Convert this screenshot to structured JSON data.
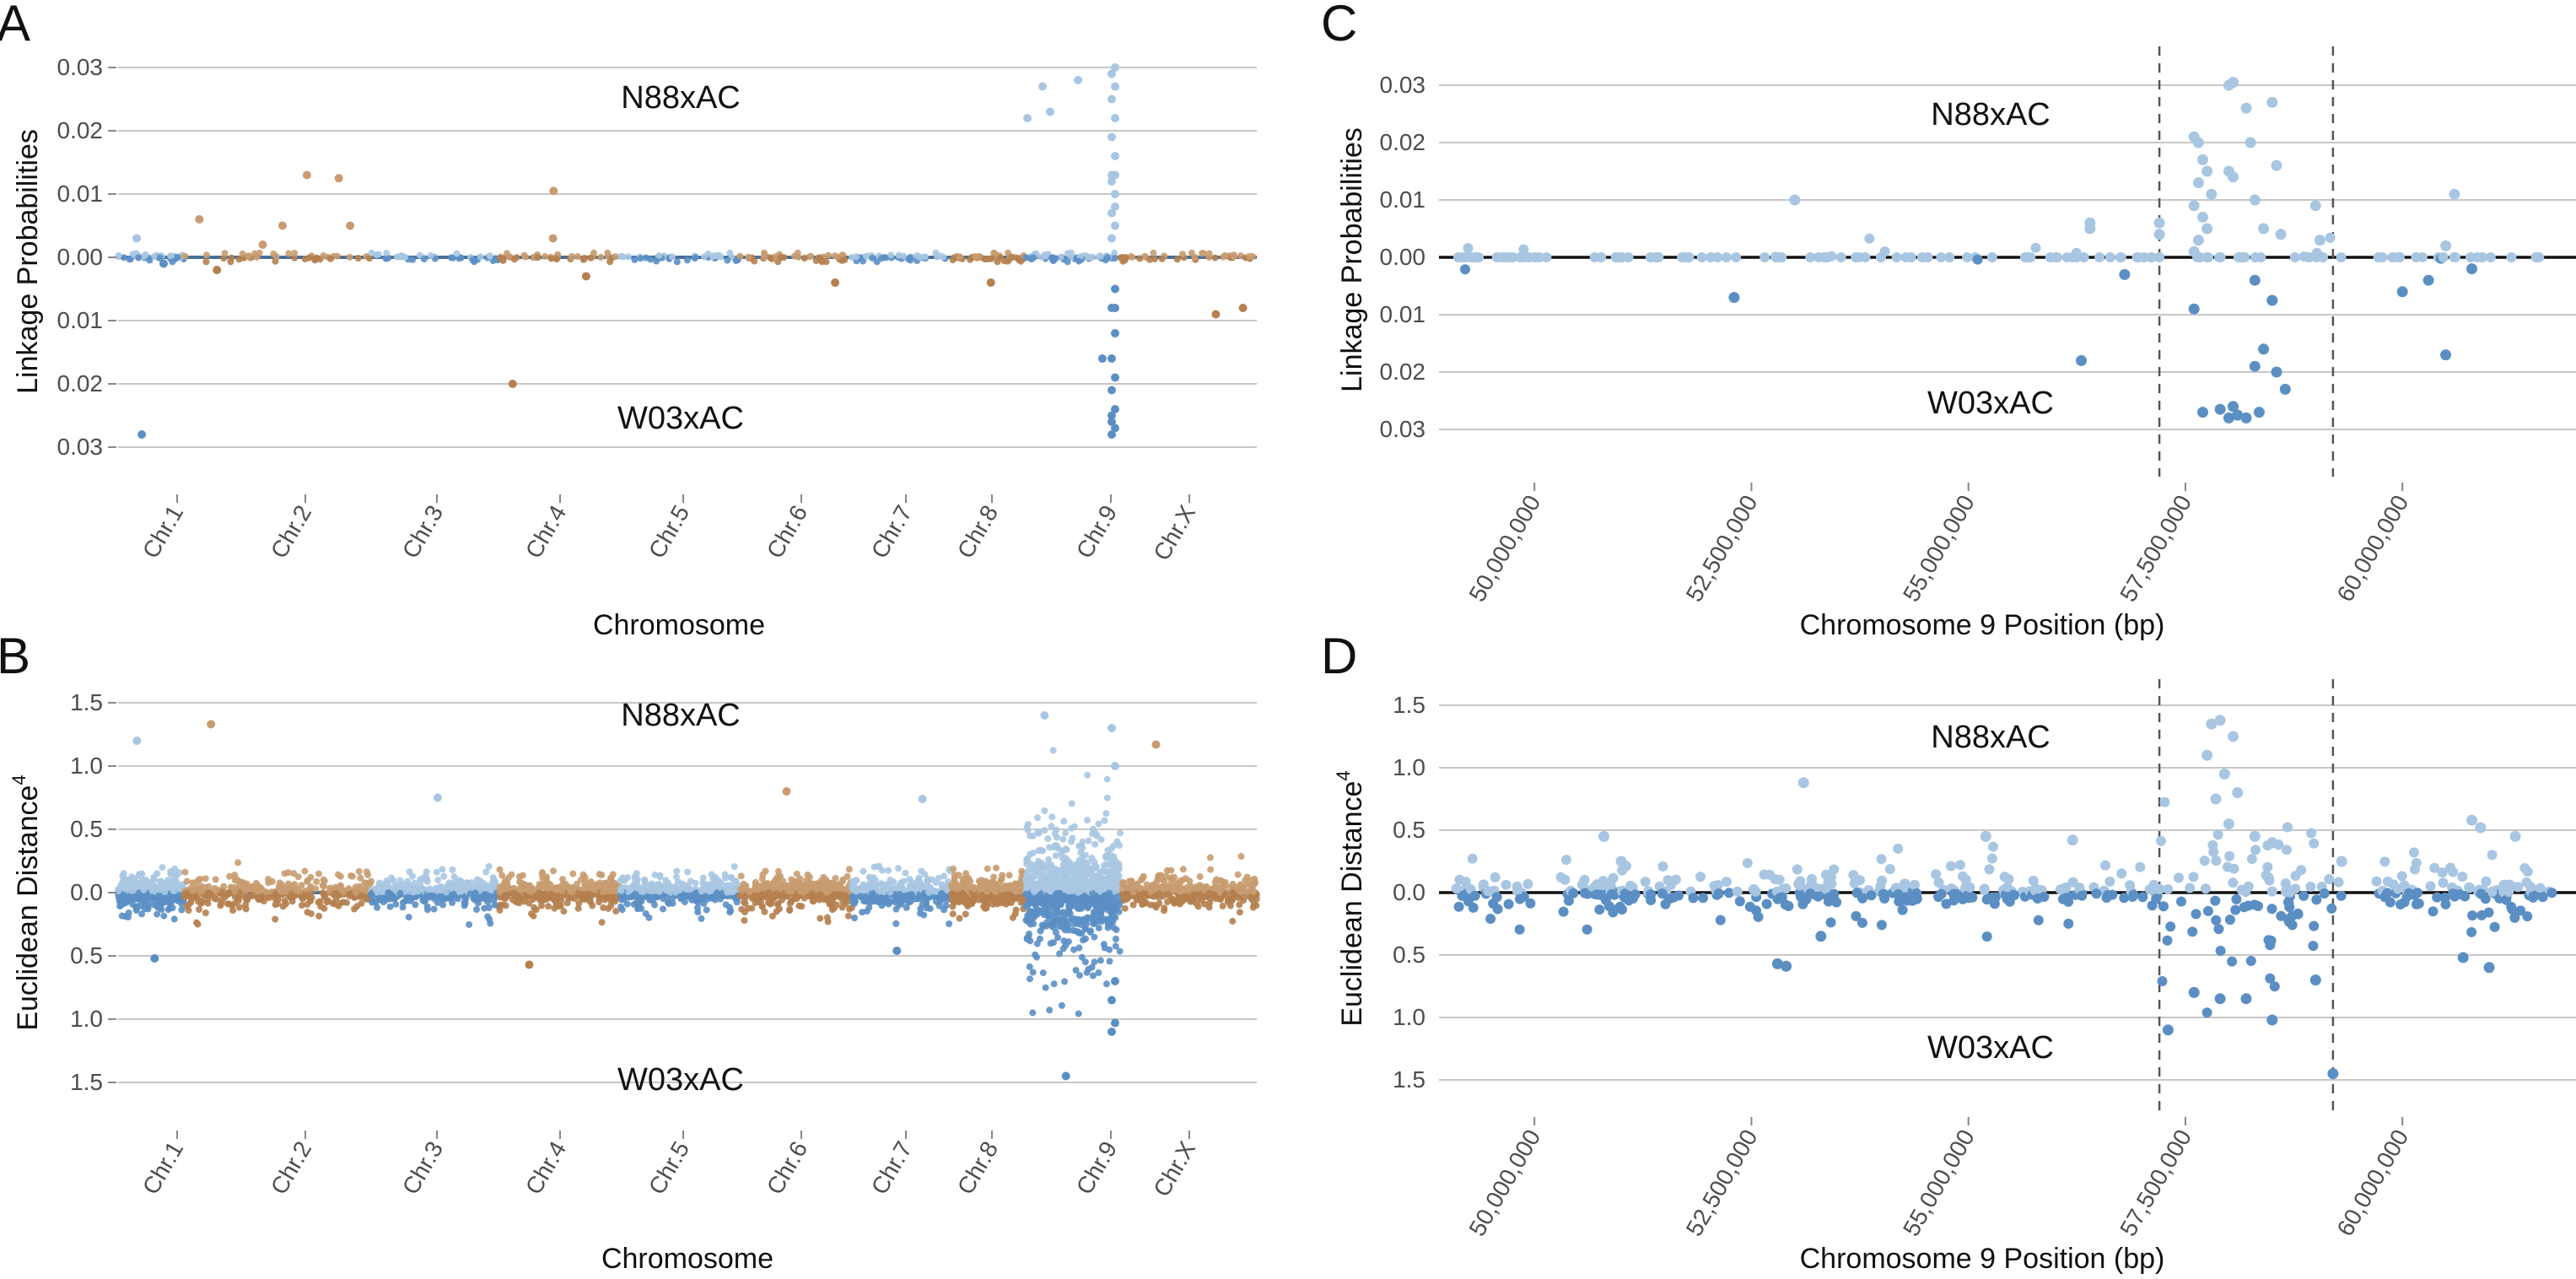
{
  "chart_data": [
    {
      "panel": "A",
      "type": "scatter",
      "subtype": "mirrored manhattan",
      "ylabel": "Linkage Probabilities",
      "xlabel": "Chromosome",
      "top_label": "N88xAC",
      "bottom_label": "W03xAC",
      "ylim_top": [
        0,
        0.035
      ],
      "ylim_bottom": [
        0,
        0.035
      ],
      "y_ticks_top": [
        "0.00",
        "0.01",
        "0.02",
        "0.03"
      ],
      "y_ticks_bottom": [
        "0.01",
        "0.02",
        "0.03"
      ],
      "y_tick_values_top": [
        0,
        0.01,
        0.02,
        0.03
      ],
      "y_tick_values_bottom": [
        0.01,
        0.02,
        0.03
      ],
      "chromosomes": [
        "Chr.1",
        "Chr.2",
        "Chr.3",
        "Chr.4",
        "Chr.5",
        "Chr.6",
        "Chr.7",
        "Chr.8",
        "Chr.9",
        "Chr.X"
      ],
      "colors": {
        "blue_dark": "#5b8fc4",
        "blue_light": "#a8c6e2",
        "tan": "#c89c70",
        "tan_dark": "#b5804f"
      },
      "series": [
        {
          "name": "N88xAC",
          "notable_points": [
            {
              "chrom": "Chr.1",
              "value": 0.003
            },
            {
              "chrom": "Chr.2",
              "value": 0.006
            },
            {
              "chrom": "Chr.2",
              "value": 0.005
            },
            {
              "chrom": "Chr.2",
              "value": 0.0125
            },
            {
              "chrom": "Chr.2",
              "value": 0.013
            },
            {
              "chrom": "Chr.2",
              "value": 0.005
            },
            {
              "chrom": "Chr.2",
              "value": 0.002
            },
            {
              "chrom": "Chr.4",
              "value": 0.0105
            },
            {
              "chrom": "Chr.4",
              "value": 0.003
            },
            {
              "chrom": "Chr.9",
              "value": 0.028
            },
            {
              "chrom": "Chr.9",
              "value": 0.027
            },
            {
              "chrom": "Chr.9",
              "value": 0.023
            },
            {
              "chrom": "Chr.9",
              "value": 0.022
            },
            {
              "chrom": "Chr.9",
              "value": 0.013
            },
            {
              "chrom": "Chr.9",
              "value": 0.012
            },
            {
              "chrom": "Chr.9",
              "value": 0.008
            },
            {
              "chrom": "Chr.9",
              "value": 0.003
            },
            {
              "chrom": "Chr.9",
              "value": 0.03
            },
            {
              "chrom": "Chr.9",
              "value": 0.029
            },
            {
              "chrom": "Chr.9",
              "value": 0.027
            },
            {
              "chrom": "Chr.9",
              "value": 0.025
            },
            {
              "chrom": "Chr.9",
              "value": 0.022
            },
            {
              "chrom": "Chr.9",
              "value": 0.019
            },
            {
              "chrom": "Chr.9",
              "value": 0.016
            },
            {
              "chrom": "Chr.9",
              "value": 0.013
            },
            {
              "chrom": "Chr.9",
              "value": 0.01
            },
            {
              "chrom": "Chr.9",
              "value": 0.007
            },
            {
              "chrom": "Chr.9",
              "value": 0.005
            }
          ]
        },
        {
          "name": "W03xAC",
          "notable_points": [
            {
              "chrom": "Chr.1",
              "value": 0.028
            },
            {
              "chrom": "Chr.1",
              "value": 0.001
            },
            {
              "chrom": "Chr.2",
              "value": 0.002
            },
            {
              "chrom": "Chr.4",
              "value": 0.02
            },
            {
              "chrom": "Chr.4",
              "value": 0.003
            },
            {
              "chrom": "Chr.6",
              "value": 0.004
            },
            {
              "chrom": "Chr.8",
              "value": 0.004
            },
            {
              "chrom": "Chr.9",
              "value": 0.016
            },
            {
              "chrom": "Chr.9",
              "value": 0.025
            },
            {
              "chrom": "Chr.9",
              "value": 0.008
            },
            {
              "chrom": "Chr.9",
              "value": 0.028
            },
            {
              "chrom": "Chr.9",
              "value": 0.027
            },
            {
              "chrom": "Chr.9",
              "value": 0.026
            },
            {
              "chrom": "Chr.9",
              "value": 0.024
            },
            {
              "chrom": "Chr.9",
              "value": 0.021
            },
            {
              "chrom": "Chr.9",
              "value": 0.019
            },
            {
              "chrom": "Chr.9",
              "value": 0.016
            },
            {
              "chrom": "Chr.9",
              "value": 0.012
            },
            {
              "chrom": "Chr.9",
              "value": 0.008
            },
            {
              "chrom": "Chr.9",
              "value": 0.005
            },
            {
              "chrom": "Chr.X",
              "value": 0.008
            },
            {
              "chrom": "Chr.X",
              "value": 0.009
            }
          ]
        }
      ]
    },
    {
      "panel": "B",
      "type": "scatter",
      "subtype": "mirrored manhattan",
      "ylabel": "Euclidean Distance",
      "ylabel_superscript": "4",
      "xlabel": "Chromosome",
      "top_label": "N88xAC",
      "bottom_label": "W03xAC",
      "ylim_top": [
        0,
        1.6
      ],
      "ylim_bottom": [
        0,
        1.6
      ],
      "y_ticks_top": [
        "0.0",
        "0.5",
        "1.0",
        "1.5"
      ],
      "y_ticks_bottom": [
        "0.5",
        "1.0",
        "1.5"
      ],
      "y_tick_values_top": [
        0,
        0.5,
        1.0,
        1.5
      ],
      "y_tick_values_bottom": [
        0.5,
        1.0,
        1.5
      ],
      "chromosomes": [
        "Chr.1",
        "Chr.2",
        "Chr.3",
        "Chr.4",
        "Chr.5",
        "Chr.6",
        "Chr.7",
        "Chr.8",
        "Chr.9",
        "Chr.X"
      ],
      "series": [
        {
          "name": "N88xAC",
          "notable_points": [
            {
              "chrom": "Chr.1",
              "value": 1.2
            },
            {
              "chrom": "Chr.2",
              "value": 1.33
            },
            {
              "chrom": "Chr.3",
              "value": 0.75
            },
            {
              "chrom": "Chr.6",
              "value": 0.8
            },
            {
              "chrom": "Chr.7",
              "value": 0.74
            },
            {
              "chrom": "Chr.9",
              "value": 1.4
            },
            {
              "chrom": "Chr.9",
              "value": 1.3
            },
            {
              "chrom": "Chr.9",
              "value": 1.0
            },
            {
              "chrom": "Chr.X",
              "value": 1.17
            }
          ]
        },
        {
          "name": "W03xAC",
          "notable_points": [
            {
              "chrom": "Chr.1",
              "value": 0.52
            },
            {
              "chrom": "Chr.4",
              "value": 0.57
            },
            {
              "chrom": "Chr.7",
              "value": 0.46
            },
            {
              "chrom": "Chr.9",
              "value": 1.45
            },
            {
              "chrom": "Chr.9",
              "value": 1.1
            },
            {
              "chrom": "Chr.9",
              "value": 1.03
            },
            {
              "chrom": "Chr.9",
              "value": 0.85
            },
            {
              "chrom": "Chr.9",
              "value": 0.7
            }
          ]
        }
      ]
    },
    {
      "panel": "C",
      "type": "scatter",
      "subtype": "mirrored regional",
      "ylabel": "Linkage Probabilities",
      "xlabel": "Chromosome 9 Position (bp)",
      "top_label": "N88xAC",
      "bottom_label": "W03xAC",
      "xlim": [
        48900000,
        62000000
      ],
      "x_ticks": [
        "50,000,000",
        "52,500,000",
        "55,000,000",
        "57,500,000",
        "60,000,000"
      ],
      "x_tick_values": [
        50000000,
        52500000,
        55000000,
        57500000,
        60000000
      ],
      "vlines": [
        57200000,
        59200000
      ],
      "ylim_top": [
        0,
        0.033
      ],
      "ylim_bottom": [
        0,
        0.033
      ],
      "y_ticks_top": [
        "0.00",
        "0.01",
        "0.02",
        "0.03"
      ],
      "y_ticks_bottom": [
        "0.01",
        "0.02",
        "0.03"
      ],
      "y_tick_values_top": [
        0,
        0.01,
        0.02,
        0.03
      ],
      "y_tick_values_bottom": [
        0.01,
        0.02,
        0.03
      ],
      "series": [
        {
          "name": "N88xAC",
          "points": [
            [
              53000000,
              0.01
            ],
            [
              56400000,
              0.006
            ],
            [
              56400000,
              0.005
            ],
            [
              57200000,
              0.006
            ],
            [
              57200000,
              0.004
            ],
            [
              57600000,
              0.021
            ],
            [
              57650000,
              0.02
            ],
            [
              57700000,
              0.017
            ],
            [
              57750000,
              0.015
            ],
            [
              57650000,
              0.013
            ],
            [
              57800000,
              0.011
            ],
            [
              57600000,
              0.009
            ],
            [
              57700000,
              0.007
            ],
            [
              57750000,
              0.005
            ],
            [
              57650000,
              0.003
            ],
            [
              57600000,
              0.001
            ],
            [
              58000000,
              0.03
            ],
            [
              58050000,
              0.0305
            ],
            [
              58000000,
              0.015
            ],
            [
              58050000,
              0.014
            ],
            [
              58250000,
              0.02
            ],
            [
              58200000,
              0.026
            ],
            [
              58500000,
              0.027
            ],
            [
              58550000,
              0.016
            ],
            [
              58300000,
              0.01
            ],
            [
              58400000,
              0.005
            ],
            [
              58600000,
              0.004
            ],
            [
              59000000,
              0.009
            ],
            [
              59050000,
              0.003
            ],
            [
              60600000,
              0.011
            ],
            [
              60500000,
              0.002
            ]
          ]
        },
        {
          "name": "W03xAC",
          "points": [
            [
              52300000,
              0.007
            ],
            [
              56300000,
              0.018
            ],
            [
              56800000,
              0.003
            ],
            [
              57600000,
              0.009
            ],
            [
              57700000,
              0.027
            ],
            [
              57900000,
              0.0265
            ],
            [
              58000000,
              0.028
            ],
            [
              58100000,
              0.0275
            ],
            [
              58200000,
              0.028
            ],
            [
              58350000,
              0.027
            ],
            [
              58050000,
              0.026
            ],
            [
              58300000,
              0.019
            ],
            [
              58550000,
              0.02
            ],
            [
              58650000,
              0.023
            ],
            [
              58400000,
              0.016
            ],
            [
              58500000,
              0.0075
            ],
            [
              58300000,
              0.004
            ],
            [
              60000000,
              0.006
            ],
            [
              60300000,
              0.004
            ],
            [
              60500000,
              0.017
            ],
            [
              60800000,
              0.002
            ]
          ]
        }
      ]
    },
    {
      "panel": "D",
      "type": "scatter",
      "subtype": "mirrored regional",
      "ylabel": "Euclidean Distance",
      "ylabel_superscript": "4",
      "xlabel": "Chromosome 9 Position (bp)",
      "top_label": "N88xAC",
      "bottom_label": "W03xAC",
      "xlim": [
        48900000,
        62000000
      ],
      "x_ticks": [
        "50,000,000",
        "52,500,000",
        "55,000,000",
        "57,500,000",
        "60,000,000"
      ],
      "x_tick_values": [
        50000000,
        52500000,
        55000000,
        57500000,
        60000000
      ],
      "vlines": [
        57200000,
        59200000
      ],
      "ylim_top": [
        0,
        1.65
      ],
      "ylim_bottom": [
        0,
        1.65
      ],
      "y_ticks_top": [
        "0.0",
        "0.5",
        "1.0",
        "1.5"
      ],
      "y_ticks_bottom": [
        "0.5",
        "1.0",
        "1.5"
      ],
      "y_tick_values_top": [
        0,
        0.5,
        1.0,
        1.5
      ],
      "y_tick_values_bottom": [
        0.5,
        1.0,
        1.5
      ],
      "series": [
        {
          "name": "N88xAC",
          "points": [
            [
              50800000,
              0.45
            ],
            [
              51000000,
              0.25
            ],
            [
              53100000,
              0.88
            ],
            [
              55200000,
              0.45
            ],
            [
              56200000,
              0.42
            ],
            [
              57800000,
              1.35
            ],
            [
              57900000,
              1.38
            ],
            [
              58050000,
              1.25
            ],
            [
              57750000,
              1.1
            ],
            [
              57950000,
              0.95
            ],
            [
              58100000,
              0.8
            ],
            [
              57850000,
              0.75
            ],
            [
              58000000,
              0.55
            ],
            [
              58300000,
              0.45
            ],
            [
              58500000,
              0.4
            ],
            [
              59300000,
              0.25
            ],
            [
              60800000,
              0.58
            ],
            [
              60900000,
              0.52
            ],
            [
              61300000,
              0.45
            ]
          ]
        },
        {
          "name": "W03xAC",
          "points": [
            [
              52800000,
              0.57
            ],
            [
              52900000,
              0.59
            ],
            [
              53300000,
              0.35
            ],
            [
              57300000,
              1.1
            ],
            [
              57600000,
              0.8
            ],
            [
              57900000,
              0.85
            ],
            [
              58200000,
              0.85
            ],
            [
              58500000,
              1.02
            ],
            [
              59000000,
              0.7
            ],
            [
              59200000,
              1.45
            ],
            [
              60700000,
              0.52
            ],
            [
              61000000,
              0.6
            ]
          ]
        }
      ]
    }
  ]
}
